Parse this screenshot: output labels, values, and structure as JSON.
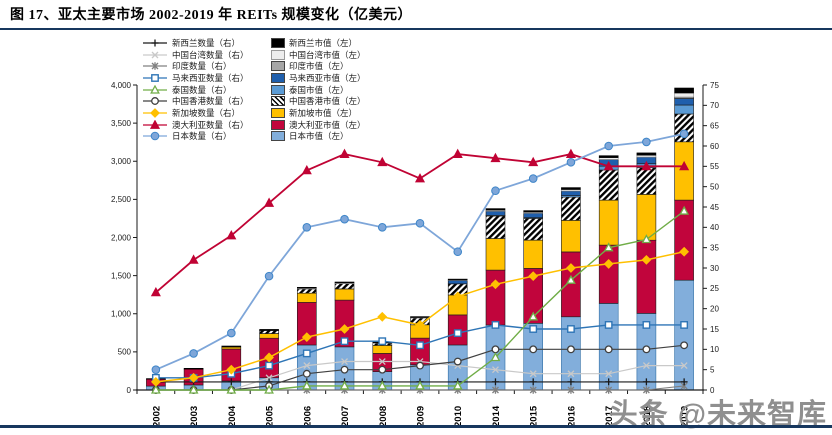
{
  "figure": {
    "title": "图 17、亚太主要市场 2002-2019 年 REITs 规模变化（亿美元）",
    "watermark": "头条 @未来智库"
  },
  "colors": {
    "rule": "#17375E",
    "axis": "#1a1a1a",
    "watermark": "#8F8F8F"
  },
  "chart_data": {
    "type": "combo: stacked bar (市值, left axis) + line (数量, right axis)",
    "title": "亚太主要市场 2002-2019 年 REITs 规模变化（亿美元）",
    "units": "亿美元",
    "categories": [
      "2002",
      "2003",
      "2004",
      "2005",
      "2006",
      "2007",
      "2008",
      "2009",
      "2010",
      "2014",
      "2015",
      "2016",
      "2017",
      "2018",
      "2019"
    ],
    "left_axis": {
      "min": 0,
      "max": 4000,
      "step": 500,
      "ticks": [
        "0",
        "500",
        "1,000",
        "1,500",
        "2,000",
        "2,500",
        "3,000",
        "3,500",
        "4,000"
      ]
    },
    "right_axis": {
      "min": 0,
      "max": 75,
      "step": 5
    },
    "grid": false,
    "legend_position": "top-left-two-columns",
    "bar_series": [
      {
        "key": "japan",
        "name": "日本市值（左）",
        "color": "#82AEDB",
        "stroke": "#2E6DA4",
        "values": [
          52,
          65,
          118,
          160,
          590,
          565,
          240,
          330,
          590,
          852,
          875,
          960,
          1135,
          1005,
          1440
        ]
      },
      {
        "key": "australia",
        "name": "澳大利亚市值（左）",
        "color": "#C1053C",
        "stroke": "#1a1a1a",
        "values": [
          90,
          210,
          420,
          520,
          560,
          615,
          240,
          350,
          395,
          720,
          720,
          850,
          765,
          960,
          1050
        ]
      },
      {
        "key": "singapore",
        "name": "新加坡市值（左）",
        "color": "#FFC000",
        "stroke": "#1a1a1a",
        "values": [
          0,
          0,
          26,
          60,
          120,
          145,
          105,
          175,
          262,
          415,
          370,
          415,
          590,
          600,
          765
        ]
      },
      {
        "key": "hongkong",
        "name": "中国香港市值（左）",
        "color": "hatch",
        "stroke": "#1a1a1a",
        "values": [
          0,
          0,
          0,
          40,
          55,
          70,
          30,
          90,
          145,
          295,
          285,
          305,
          395,
          350,
          365
        ]
      },
      {
        "key": "thailand",
        "name": "泰国市值（左）",
        "color": "#5B9BD5",
        "stroke": "#1a1a1a",
        "values": [
          0,
          0,
          0,
          0,
          0,
          0,
          0,
          0,
          0,
          10,
          12,
          20,
          50,
          52,
          118
        ]
      },
      {
        "key": "malaysia",
        "name": "马来西亚市值（左）",
        "color": "#1F5FAD",
        "stroke": "#1a1a1a",
        "values": [
          0,
          0,
          0,
          0,
          0,
          0,
          0,
          0,
          45,
          52,
          56,
          60,
          88,
          87,
          85
        ]
      },
      {
        "key": "india",
        "name": "印度市值（左）",
        "color": "#A6A6A6",
        "stroke": "#1a1a1a",
        "values": [
          0,
          0,
          0,
          0,
          0,
          0,
          0,
          0,
          0,
          0,
          0,
          0,
          0,
          0,
          20
        ]
      },
      {
        "key": "taiwan",
        "name": "中国台湾市值（左）",
        "color": "#EDEDED",
        "stroke": "#8a8a8a",
        "values": [
          0,
          0,
          0,
          0,
          10,
          10,
          5,
          5,
          8,
          15,
          15,
          20,
          25,
          25,
          52
        ]
      },
      {
        "key": "newzealand",
        "name": "新西兰市值（左）",
        "color": "#000000",
        "stroke": "#000000",
        "values": [
          8,
          10,
          13,
          15,
          12,
          12,
          10,
          12,
          10,
          20,
          20,
          25,
          25,
          30,
          65
        ]
      }
    ],
    "line_series": [
      {
        "key": "taiwan",
        "name": "中国台湾数量（右）",
        "color": "#C9C9C9",
        "marker": "x",
        "width": 1.2,
        "values": [
          0,
          0,
          0,
          3,
          6,
          7,
          7,
          7,
          6,
          5,
          4,
          4,
          4,
          6,
          6
        ]
      },
      {
        "key": "india",
        "name": "印度数量（右）",
        "color": "#808080",
        "marker": "asterisk",
        "width": 1.1,
        "values": [
          0,
          0,
          0,
          0,
          0,
          0,
          0,
          0,
          0,
          0,
          0,
          0,
          0,
          0,
          1
        ]
      },
      {
        "key": "newzealand",
        "name": "新西兰数量（右）",
        "color": "#1A1A1A",
        "marker": "plus",
        "width": 1.1,
        "values": [
          2,
          2,
          2,
          2,
          2,
          2,
          2,
          2,
          2,
          2,
          2,
          2,
          2,
          2,
          2
        ]
      },
      {
        "key": "hongkong",
        "name": "中国香港数量（右）",
        "color": "#404040",
        "marker": "circle-open",
        "width": 1.2,
        "values": [
          0,
          0,
          0,
          1,
          4,
          5,
          5,
          6,
          7,
          10,
          10,
          10,
          10,
          10,
          11
        ]
      },
      {
        "key": "malaysia",
        "name": "马来西亚数量（右）",
        "color": "#2E75B6",
        "marker": "square-open",
        "width": 1.4,
        "values": [
          3,
          3,
          4,
          6,
          9,
          12,
          12,
          11,
          14,
          16,
          15,
          15,
          16,
          16,
          16
        ]
      },
      {
        "key": "thailand",
        "name": "泰国数量（右）",
        "color": "#70AD47",
        "marker": "triangle-open",
        "width": 1.4,
        "values": [
          0,
          0,
          0,
          0,
          1,
          1,
          1,
          1,
          1,
          8,
          18,
          27,
          35,
          37,
          44
        ]
      },
      {
        "key": "singapore",
        "name": "新加坡数量（右）",
        "color": "#FFC000",
        "marker": "diamond",
        "width": 1.5,
        "values": [
          2,
          3,
          5,
          8,
          13,
          15,
          18,
          16,
          23,
          26,
          28,
          30,
          31,
          32,
          34
        ]
      },
      {
        "key": "australia",
        "name": "澳大利亚数量（右）",
        "color": "#C00334",
        "marker": "triangle",
        "width": 1.8,
        "values": [
          24,
          32,
          38,
          46,
          54,
          58,
          56,
          52,
          58,
          57,
          56,
          58,
          55,
          55,
          55
        ]
      },
      {
        "key": "japan",
        "name": "日本数量（右）",
        "color": "#7EA6D9",
        "marker": "circle",
        "width": 1.8,
        "values": [
          5,
          9,
          14,
          28,
          40,
          42,
          40,
          41,
          34,
          49,
          52,
          56,
          60,
          61,
          63
        ]
      }
    ],
    "legend_rows_order": [
      "newzealand",
      "taiwan",
      "india",
      "malaysia",
      "thailand",
      "hongkong",
      "singapore",
      "australia",
      "japan"
    ]
  }
}
